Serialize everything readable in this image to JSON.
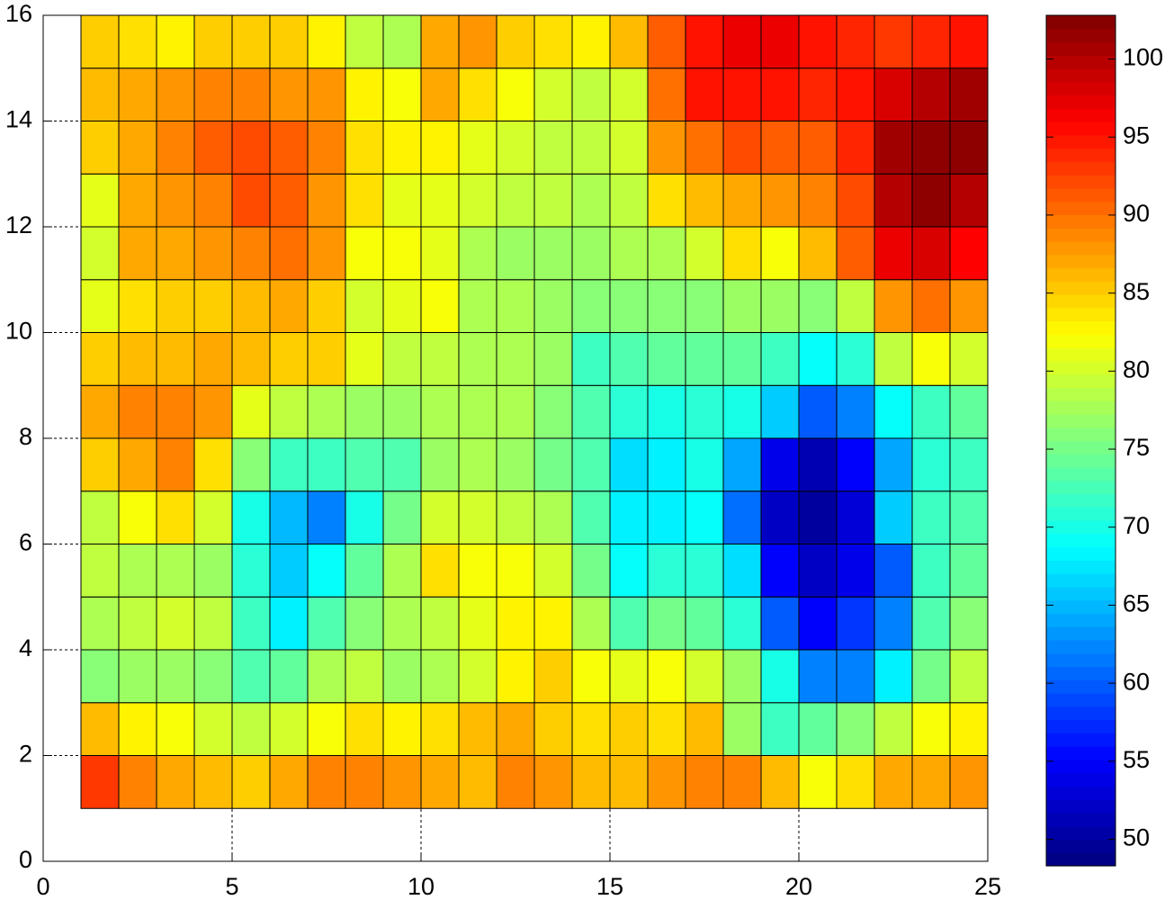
{
  "chart_data": {
    "type": "heatmap",
    "colormap": "jet",
    "grid": true,
    "x": [
      1,
      2,
      3,
      4,
      5,
      6,
      7,
      8,
      9,
      10,
      11,
      12,
      13,
      14,
      15,
      16,
      17,
      18,
      19,
      20,
      21,
      22,
      23,
      24,
      25
    ],
    "y": [
      1,
      2,
      3,
      4,
      5,
      6,
      7,
      8,
      9,
      10,
      11,
      12,
      13,
      14,
      15,
      16
    ],
    "values": [
      [
        93,
        89,
        87,
        86,
        85,
        87,
        89,
        89,
        88,
        87,
        86,
        89,
        88,
        86,
        86,
        88,
        89,
        89,
        86,
        82,
        84,
        87,
        87,
        88
      ],
      [
        86,
        83,
        82,
        80,
        79,
        80,
        82,
        84,
        83,
        84,
        86,
        87,
        85,
        84,
        85,
        84,
        86,
        77,
        72,
        74,
        76,
        79,
        82,
        83
      ],
      [
        76,
        77,
        77,
        76,
        73,
        74,
        78,
        79,
        77,
        78,
        80,
        83,
        85,
        82,
        81,
        82,
        80,
        77,
        70,
        62,
        62,
        68,
        75,
        79
      ],
      [
        78,
        79,
        80,
        79,
        72,
        68,
        73,
        76,
        78,
        79,
        81,
        83,
        83,
        78,
        73,
        75,
        74,
        71,
        60,
        55,
        58,
        62,
        73,
        76
      ],
      [
        79,
        78,
        78,
        77,
        71,
        66,
        69,
        74,
        78,
        84,
        82,
        82,
        80,
        75,
        69,
        71,
        71,
        67,
        55,
        52,
        54,
        60,
        72,
        74
      ],
      [
        79,
        82,
        84,
        80,
        70,
        65,
        62,
        70,
        75,
        80,
        80,
        79,
        78,
        73,
        68,
        68,
        69,
        61,
        52,
        50,
        53,
        66,
        72,
        73
      ],
      [
        85,
        87,
        89,
        84,
        76,
        72,
        72,
        73,
        73,
        77,
        78,
        77,
        75,
        73,
        67,
        68,
        70,
        64,
        54,
        51,
        55,
        64,
        71,
        72
      ],
      [
        87,
        89,
        89,
        88,
        81,
        79,
        78,
        77,
        77,
        78,
        78,
        78,
        76,
        73,
        71,
        70,
        71,
        70,
        66,
        60,
        62,
        69,
        72,
        74
      ],
      [
        85,
        86,
        86,
        87,
        86,
        85,
        85,
        81,
        79,
        79,
        78,
        78,
        77,
        72,
        73,
        74,
        74,
        74,
        72,
        69,
        71,
        79,
        82,
        80
      ],
      [
        81,
        84,
        85,
        85,
        86,
        87,
        85,
        80,
        81,
        82,
        78,
        78,
        77,
        76,
        76,
        76,
        76,
        77,
        77,
        76,
        79,
        88,
        90,
        88
      ],
      [
        80,
        87,
        87,
        88,
        89,
        90,
        88,
        82,
        82,
        81,
        78,
        77,
        77,
        77,
        78,
        78,
        80,
        84,
        82,
        86,
        91,
        97,
        98,
        96
      ],
      [
        81,
        87,
        88,
        89,
        92,
        91,
        88,
        84,
        81,
        81,
        80,
        79,
        79,
        78,
        79,
        84,
        86,
        87,
        88,
        89,
        92,
        100,
        102,
        100
      ],
      [
        85,
        87,
        89,
        91,
        92,
        91,
        89,
        84,
        83,
        83,
        81,
        80,
        79,
        79,
        80,
        88,
        90,
        92,
        91,
        91,
        94,
        101,
        102,
        102
      ],
      [
        86,
        87,
        88,
        89,
        89,
        88,
        88,
        83,
        82,
        87,
        84,
        82,
        80,
        79,
        80,
        90,
        95,
        95,
        95,
        94,
        95,
        98,
        100,
        101
      ],
      [
        85,
        84,
        83,
        85,
        85,
        85,
        83,
        79,
        78,
        87,
        88,
        85,
        84,
        83,
        86,
        91,
        95,
        97,
        97,
        95,
        94,
        93,
        94,
        95
      ]
    ],
    "xlim": [
      0,
      25
    ],
    "xticks": [
      0,
      5,
      10,
      15,
      20,
      25
    ],
    "ylim": [
      0,
      16
    ],
    "yticks": [
      0,
      2,
      4,
      6,
      8,
      10,
      12,
      14,
      16
    ],
    "clim": [
      48.3,
      102.8
    ],
    "cticks": [
      50,
      55,
      60,
      65,
      70,
      75,
      80,
      85,
      90,
      95,
      100
    ]
  }
}
